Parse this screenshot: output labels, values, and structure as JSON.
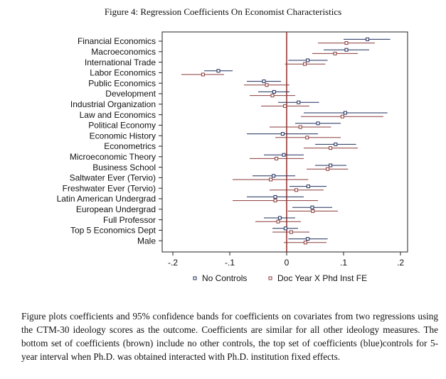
{
  "figure_title": "Figure 4: Regression Coefficients On Economist Characteristics",
  "caption": "Figure plots coefficients and 95% confidence bands for coefficients on covariates from two regressions using the CTM-30 ideology scores as the outcome. Coefficients are similar for all other ideology measures. The bottom set of coefficients (brown) include no other controls, the top set of coefficients (blue)controls for 5-year interval when Ph.D. was obtained interacted with Ph.D. institution fixed effects.",
  "colors": {
    "series_a": "#1f2f5c",
    "series_b": "#8b3a3a",
    "zero_line": "#8b1a1a"
  },
  "chart_data": {
    "type": "scatter",
    "subtype": "coefficient-plot-with-confidence-intervals",
    "title": "Figure 4: Regression Coefficients On Economist Characteristics",
    "xlabel": "",
    "ylabel": "",
    "xlim": [
      -0.2,
      0.2
    ],
    "xticks": [
      -0.2,
      -0.1,
      0,
      0.1,
      0.2
    ],
    "xtick_labels": [
      "-.2",
      "-.1",
      "0",
      ".1",
      ".2"
    ],
    "reference_line_x": 0,
    "legend_position": "bottom",
    "categories": [
      "Financial Economics",
      "Macroeconomics",
      "International Trade",
      "Labor Economics",
      "Public Economics",
      "Development",
      "Industrial Organization",
      "Law and Economics",
      "Political Economy",
      "Economic History",
      "Econometrics",
      "Microeconomic Theory",
      "Business School",
      "Saltwater Ever (Tervio)",
      "Freshwater Ever (Tervio)",
      "Latin American Undergrad",
      "European Undergrad",
      "Full Professor",
      "Top 5 Economics Dept",
      "Male"
    ],
    "series": [
      {
        "name": "No Controls",
        "estimates": [
          0.142,
          0.105,
          0.037,
          -0.12,
          -0.04,
          -0.022,
          0.021,
          0.103,
          0.055,
          -0.007,
          0.086,
          -0.005,
          0.077,
          -0.023,
          0.038,
          -0.02,
          0.045,
          -0.012,
          -0.002,
          0.037
        ],
        "ci_low": [
          0.1,
          0.065,
          0.003,
          -0.145,
          -0.07,
          -0.05,
          -0.015,
          0.03,
          0.015,
          -0.07,
          0.05,
          -0.04,
          0.05,
          -0.06,
          0.005,
          -0.07,
          0.01,
          -0.04,
          -0.025,
          0.003
        ],
        "ci_high": [
          0.182,
          0.145,
          0.072,
          -0.095,
          -0.01,
          0.005,
          0.057,
          0.177,
          0.095,
          0.055,
          0.122,
          0.03,
          0.105,
          0.015,
          0.07,
          0.03,
          0.08,
          0.015,
          0.02,
          0.072
        ]
      },
      {
        "name": "Doc Year X Phd Inst FE",
        "estimates": [
          0.105,
          0.085,
          0.032,
          -0.147,
          -0.035,
          -0.025,
          -0.003,
          0.098,
          0.024,
          0.036,
          0.077,
          -0.018,
          0.072,
          -0.028,
          0.017,
          -0.02,
          0.046,
          -0.015,
          0.008,
          0.033
        ],
        "ci_low": [
          0.055,
          0.045,
          -0.003,
          -0.185,
          -0.075,
          -0.065,
          -0.045,
          0.025,
          -0.03,
          -0.02,
          0.03,
          -0.065,
          0.035,
          -0.095,
          -0.03,
          -0.095,
          0.002,
          -0.055,
          -0.025,
          -0.005
        ],
        "ci_high": [
          0.155,
          0.125,
          0.068,
          -0.11,
          0.005,
          0.015,
          0.04,
          0.17,
          0.078,
          0.095,
          0.125,
          0.03,
          0.108,
          0.038,
          0.065,
          0.055,
          0.09,
          0.025,
          0.04,
          0.07
        ]
      }
    ]
  }
}
